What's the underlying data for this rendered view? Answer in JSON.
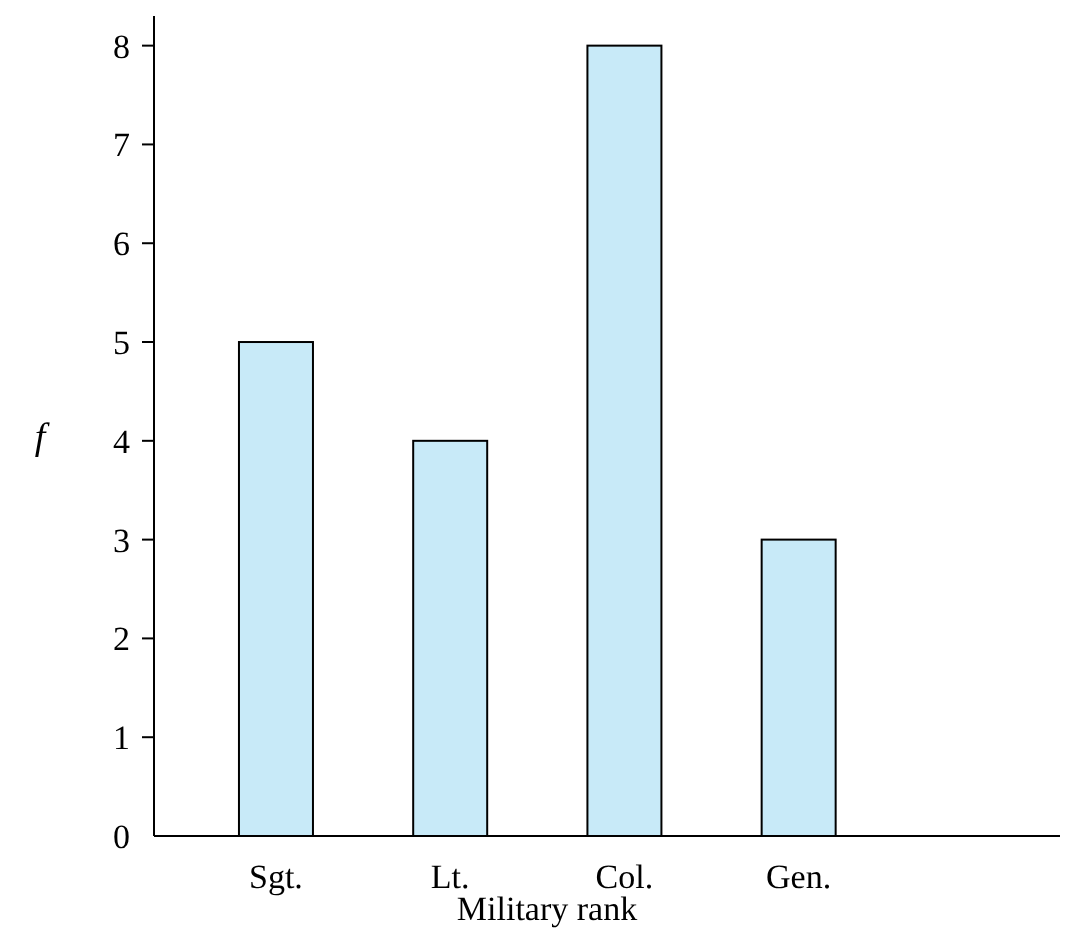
{
  "chart_data": {
    "type": "bar",
    "xlabel": "Military rank",
    "ylabel": "f",
    "categories": [
      "Sgt.",
      "Lt.",
      "Col.",
      "Gen."
    ],
    "values": [
      5,
      4,
      8,
      3
    ],
    "color": "#c8eaf8",
    "ylim": [
      0,
      8.3
    ],
    "yticks": [
      0,
      1,
      2,
      3,
      4,
      5,
      6,
      7,
      8
    ],
    "grid": false
  }
}
